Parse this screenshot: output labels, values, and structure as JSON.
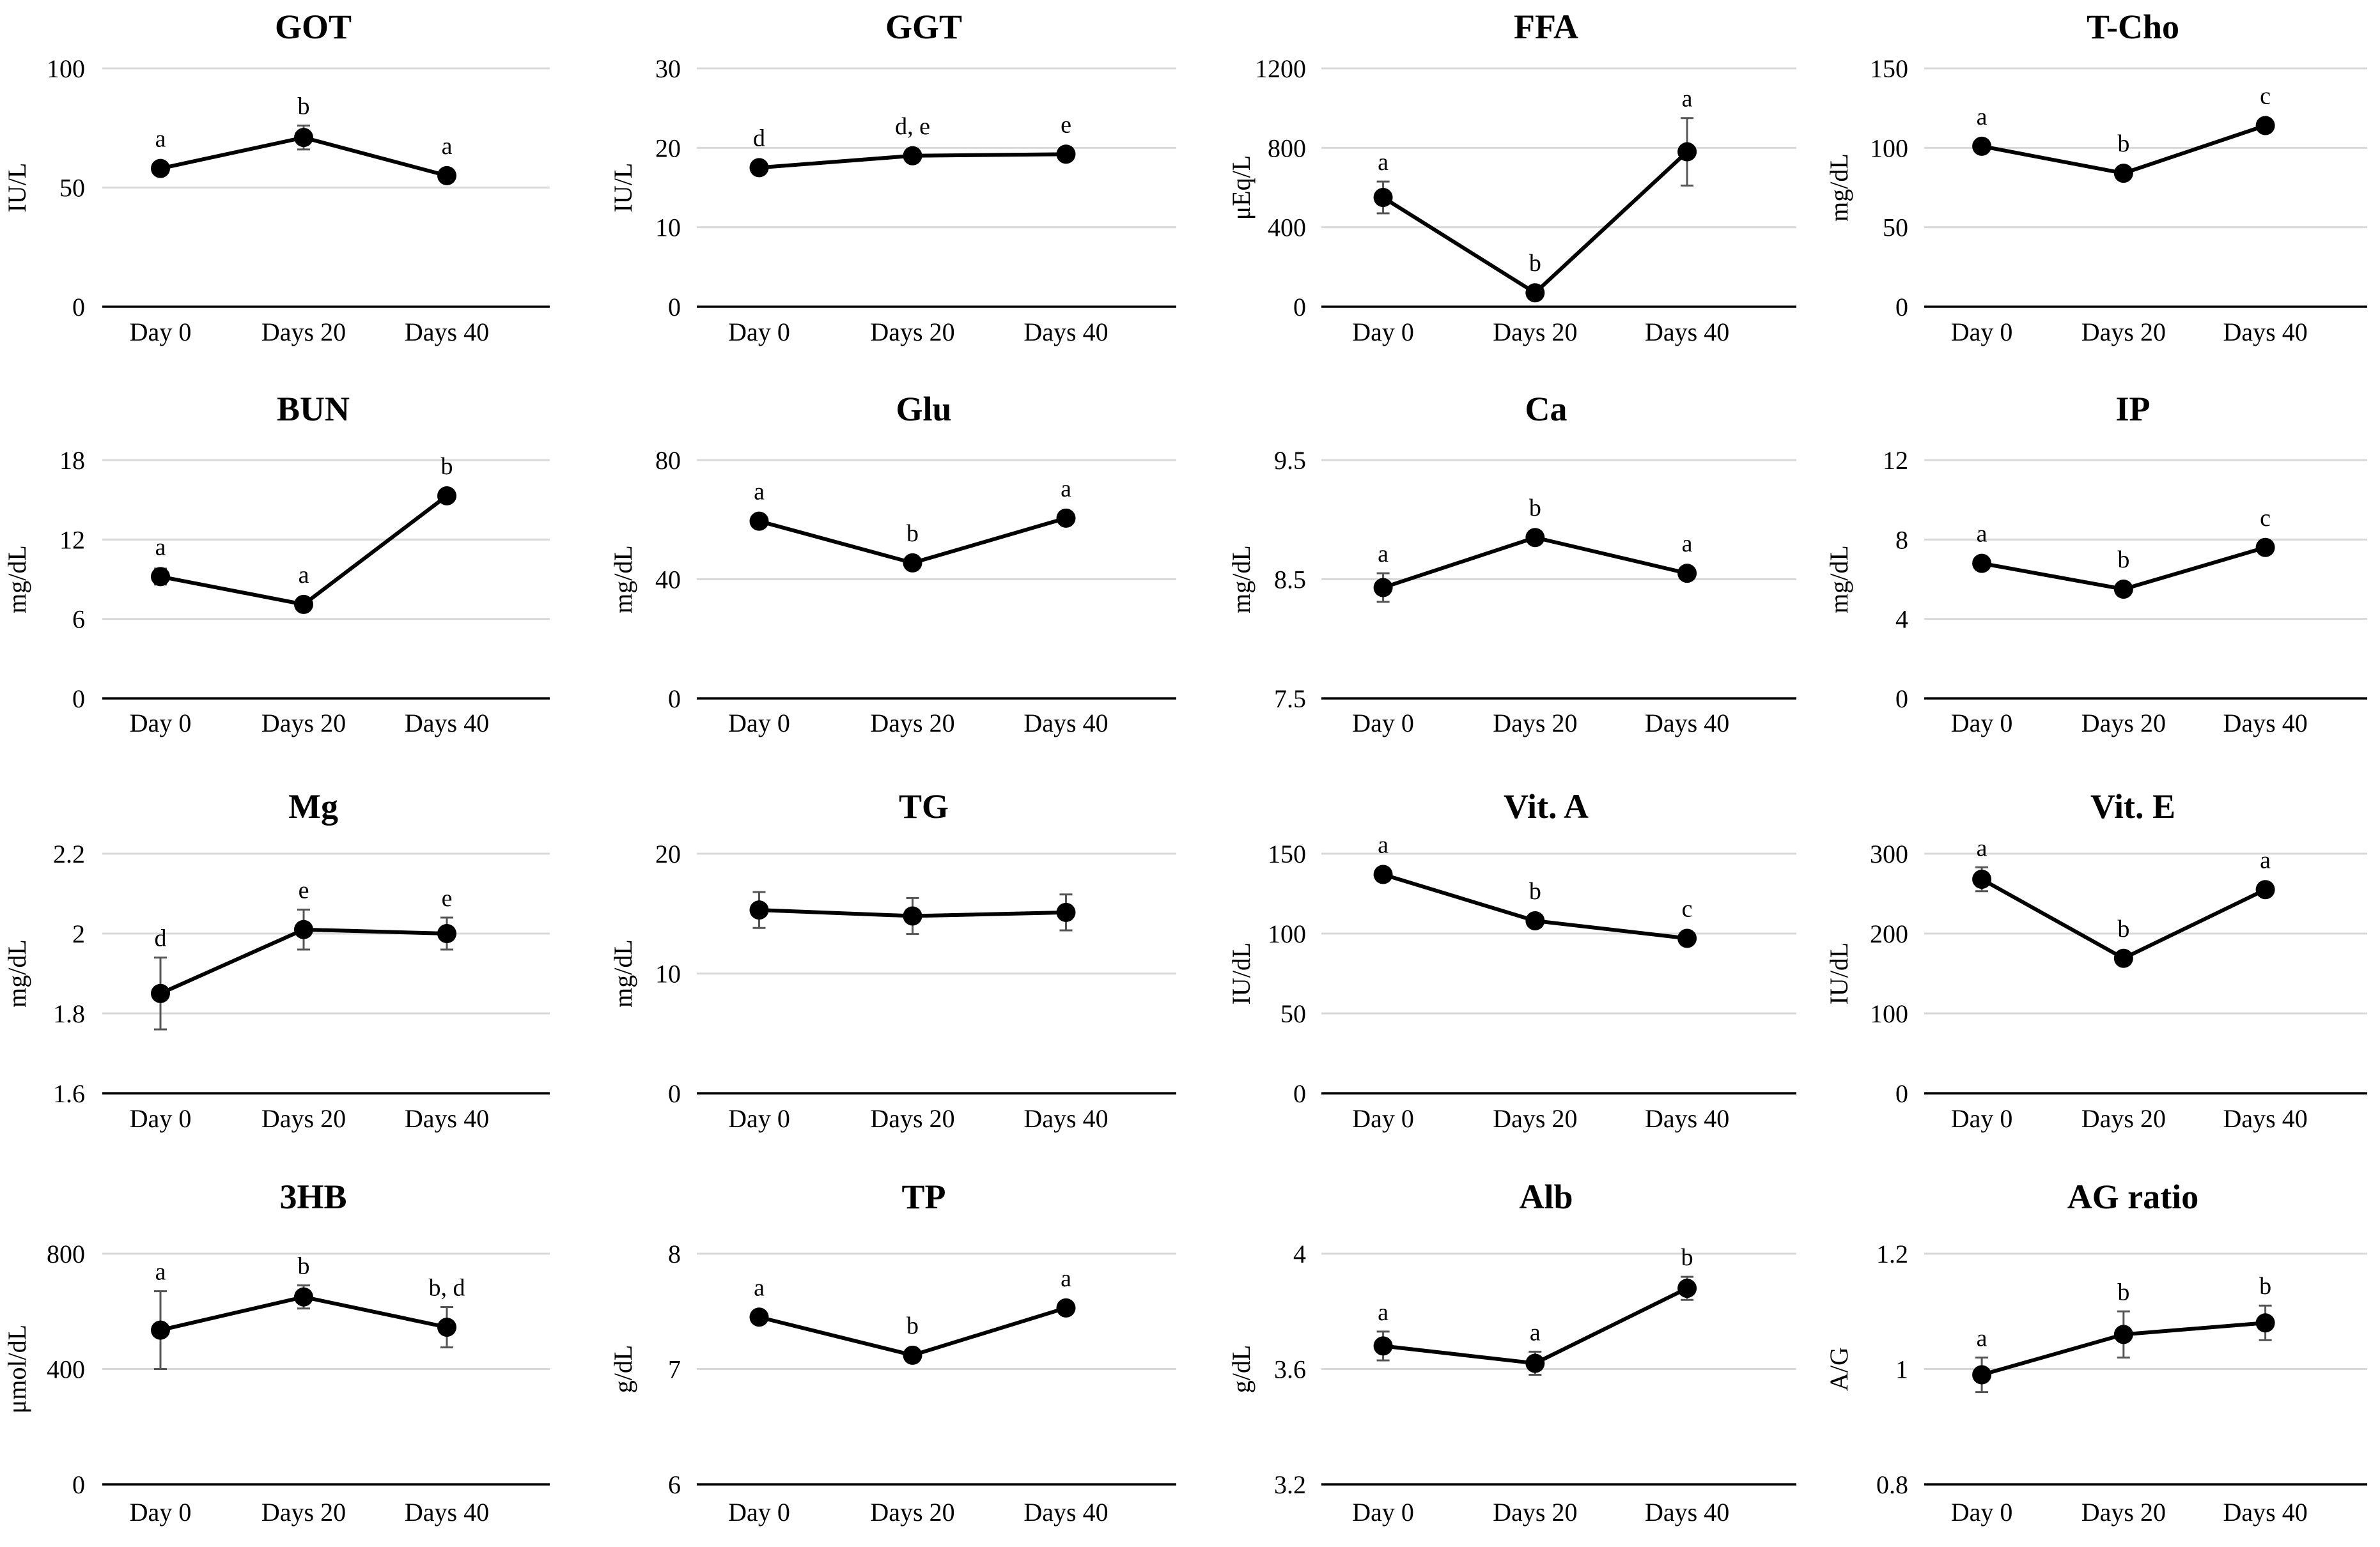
{
  "chart_data": [
    {
      "type": "line",
      "title": "GOT",
      "ylabel": "IU/L",
      "categories": [
        "Day 0",
        "Days 20",
        "Days 40"
      ],
      "ylim": [
        0,
        100
      ],
      "yticks": [
        0,
        50,
        100
      ],
      "values": [
        58,
        71,
        55
      ],
      "errors": [
        2,
        5,
        2
      ],
      "labels": [
        "a",
        "b",
        "a"
      ]
    },
    {
      "type": "line",
      "title": "GGT",
      "ylabel": "IU/L",
      "categories": [
        "Day 0",
        "Days 20",
        "Days 40"
      ],
      "ylim": [
        0,
        30
      ],
      "yticks": [
        0,
        10,
        20,
        30
      ],
      "values": [
        17.5,
        19,
        19.2
      ],
      "errors": [
        0.6,
        0.5,
        0.5
      ],
      "labels": [
        "d",
        "d, e",
        "e"
      ]
    },
    {
      "type": "line",
      "title": "FFA",
      "ylabel": "μEq/L",
      "categories": [
        "Day 0",
        "Days 20",
        "Days 40"
      ],
      "ylim": [
        0,
        1200
      ],
      "yticks": [
        0,
        400,
        800,
        1200
      ],
      "values": [
        550,
        70,
        780
      ],
      "errors": [
        80,
        15,
        170
      ],
      "labels": [
        "a",
        "b",
        "a"
      ]
    },
    {
      "type": "line",
      "title": "T-Cho",
      "ylabel": "mg/dL",
      "categories": [
        "Day 0",
        "Days 20",
        "Days 40"
      ],
      "ylim": [
        0,
        150
      ],
      "yticks": [
        0,
        50,
        100,
        150
      ],
      "values": [
        101,
        84,
        114
      ],
      "errors": [
        3,
        3,
        3
      ],
      "labels": [
        "a",
        "b",
        "c"
      ]
    },
    {
      "type": "line",
      "title": "BUN",
      "ylabel": "mg/dL",
      "categories": [
        "Day 0",
        "Days 20",
        "Days 40"
      ],
      "ylim": [
        0,
        18
      ],
      "yticks": [
        0,
        6,
        12,
        18
      ],
      "values": [
        9.2,
        7.1,
        15.3
      ],
      "errors": [
        0.6,
        0.4,
        0.4
      ],
      "labels": [
        "a",
        "a",
        "b"
      ]
    },
    {
      "type": "line",
      "title": "Glu",
      "ylabel": "mg/dL",
      "categories": [
        "Day 0",
        "Days 20",
        "Days 40"
      ],
      "ylim": [
        0,
        80
      ],
      "yticks": [
        0,
        40,
        80
      ],
      "values": [
        59.5,
        45.5,
        60.5
      ],
      "errors": [
        1.5,
        1.5,
        1.5
      ],
      "labels": [
        "a",
        "b",
        "a"
      ]
    },
    {
      "type": "line",
      "title": "Ca",
      "ylabel": "mg/dL",
      "categories": [
        "Day 0",
        "Days 20",
        "Days 40"
      ],
      "ylim": [
        7.5,
        9.5
      ],
      "yticks": [
        7.5,
        8.5,
        9.5
      ],
      "values": [
        8.43,
        8.85,
        8.55
      ],
      "errors": [
        0.12,
        0.05,
        0.05
      ],
      "labels": [
        "a",
        "b",
        "a"
      ]
    },
    {
      "type": "line",
      "title": "IP",
      "ylabel": "mg/dL",
      "categories": [
        "Day 0",
        "Days 20",
        "Days 40"
      ],
      "ylim": [
        0,
        12
      ],
      "yticks": [
        0,
        4,
        8,
        12
      ],
      "values": [
        6.8,
        5.5,
        7.6
      ],
      "errors": [
        0.2,
        0.2,
        0.2
      ],
      "labels": [
        "a",
        "b",
        "c"
      ]
    },
    {
      "type": "line",
      "title": "Mg",
      "ylabel": "mg/dL",
      "categories": [
        "Day 0",
        "Days 20",
        "Days 40"
      ],
      "ylim": [
        1.6,
        2.2
      ],
      "yticks": [
        1.6,
        1.8,
        2,
        2.2
      ],
      "values": [
        1.85,
        2.01,
        2.0
      ],
      "errors": [
        0.09,
        0.05,
        0.04
      ],
      "labels": [
        "d",
        "e",
        "e"
      ]
    },
    {
      "type": "line",
      "title": "TG",
      "ylabel": "mg/dL",
      "categories": [
        "Day 0",
        "Days 20",
        "Days 40"
      ],
      "ylim": [
        0,
        20
      ],
      "yticks": [
        0,
        10,
        20
      ],
      "values": [
        15.3,
        14.8,
        15.1
      ],
      "errors": [
        1.5,
        1.5,
        1.5
      ],
      "labels": [
        "",
        "",
        ""
      ]
    },
    {
      "type": "line",
      "title": "Vit. A",
      "ylabel": "IU/dL",
      "categories": [
        "Day 0",
        "Days 20",
        "Days 40"
      ],
      "ylim": [
        0,
        150
      ],
      "yticks": [
        0,
        50,
        100,
        150
      ],
      "values": [
        137,
        108,
        97
      ],
      "errors": [
        3,
        3,
        3
      ],
      "labels": [
        "a",
        "b",
        "c"
      ]
    },
    {
      "type": "line",
      "title": "Vit. E",
      "ylabel": "IU/dL",
      "categories": [
        "Day 0",
        "Days 20",
        "Days 40"
      ],
      "ylim": [
        0,
        300
      ],
      "yticks": [
        0,
        100,
        200,
        300
      ],
      "values": [
        268,
        169,
        255
      ],
      "errors": [
        15,
        7,
        8
      ],
      "labels": [
        "a",
        "b",
        "a"
      ]
    },
    {
      "type": "line",
      "title": "3HB",
      "ylabel": "μmol/dL",
      "categories": [
        "Day 0",
        "Days 20",
        "Days 40"
      ],
      "ylim": [
        0,
        800
      ],
      "yticks": [
        0,
        400,
        800
      ],
      "values": [
        535,
        650,
        545
      ],
      "errors": [
        135,
        40,
        70
      ],
      "labels": [
        "a",
        "b",
        "b, d"
      ]
    },
    {
      "type": "line",
      "title": "TP",
      "ylabel": "g/dL",
      "categories": [
        "Day 0",
        "Days 20",
        "Days 40"
      ],
      "ylim": [
        6,
        8
      ],
      "yticks": [
        6,
        7,
        8
      ],
      "values": [
        7.45,
        7.12,
        7.53
      ],
      "errors": [
        0.04,
        0.04,
        0.05
      ],
      "labels": [
        "a",
        "b",
        "a"
      ]
    },
    {
      "type": "line",
      "title": "Alb",
      "ylabel": "g/dL",
      "categories": [
        "Day 0",
        "Days 20",
        "Days 40"
      ],
      "ylim": [
        3.2,
        4
      ],
      "yticks": [
        3.2,
        3.6,
        4
      ],
      "values": [
        3.68,
        3.62,
        3.88
      ],
      "errors": [
        0.05,
        0.04,
        0.04
      ],
      "labels": [
        "a",
        "a",
        "b"
      ]
    },
    {
      "type": "line",
      "title": "AG ratio",
      "ylabel": "A/G",
      "categories": [
        "Day 0",
        "Days 20",
        "Days 40"
      ],
      "ylim": [
        0.8,
        1.2
      ],
      "yticks": [
        0.8,
        1,
        1.2
      ],
      "values": [
        0.99,
        1.06,
        1.08
      ],
      "errors": [
        0.03,
        0.04,
        0.03
      ],
      "labels": [
        "a",
        "b",
        "b"
      ]
    }
  ]
}
